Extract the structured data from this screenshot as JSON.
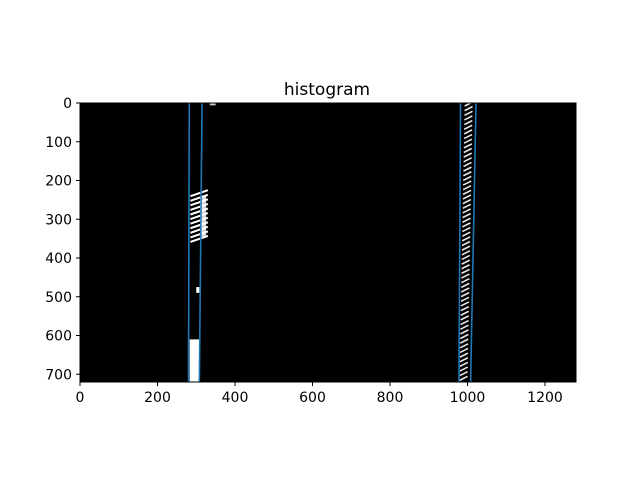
{
  "chart_data": {
    "type": "line",
    "title": "histogram",
    "xlabel": "",
    "ylabel": "",
    "xlim": [
      0,
      1280
    ],
    "ylim": [
      720,
      0
    ],
    "y_axis_inverted": true,
    "grid": false,
    "legend": "none",
    "x_ticks": [
      0,
      200,
      400,
      600,
      800,
      1000,
      1200
    ],
    "y_ticks": [
      0,
      100,
      200,
      300,
      400,
      500,
      600,
      700
    ],
    "background_image": "binary lane-line mask (black background, white lane pixels)",
    "colors": {
      "image_background": "#000000",
      "lane_pixels": "#ffffff",
      "fit_lines": "#1f77b4"
    },
    "series": [
      {
        "x": [
          282,
          280
        ],
        "y": [
          0,
          720
        ]
      },
      {
        "x": [
          315,
          308
        ],
        "y": [
          0,
          720
        ]
      },
      {
        "x": [
          982,
          978
        ],
        "y": [
          0,
          720
        ]
      },
      {
        "x": [
          1022,
          1008
        ],
        "y": [
          0,
          720
        ]
      }
    ],
    "image_features": [
      {
        "kind": "dashed-segment",
        "x_range": [
          285,
          330
        ],
        "y_range": [
          225,
          355
        ]
      },
      {
        "kind": "dot",
        "x_range": [
          300,
          308
        ],
        "y_range": [
          475,
          490
        ]
      },
      {
        "kind": "solid-segment",
        "x_range": [
          283,
          308
        ],
        "y_range": [
          610,
          720
        ]
      },
      {
        "kind": "small-blob",
        "x_range": [
          335,
          350
        ],
        "y_range": [
          0,
          6
        ]
      },
      {
        "kind": "dense-streak",
        "x_range": [
          982,
          1020
        ],
        "y_range": [
          0,
          720
        ]
      }
    ]
  }
}
